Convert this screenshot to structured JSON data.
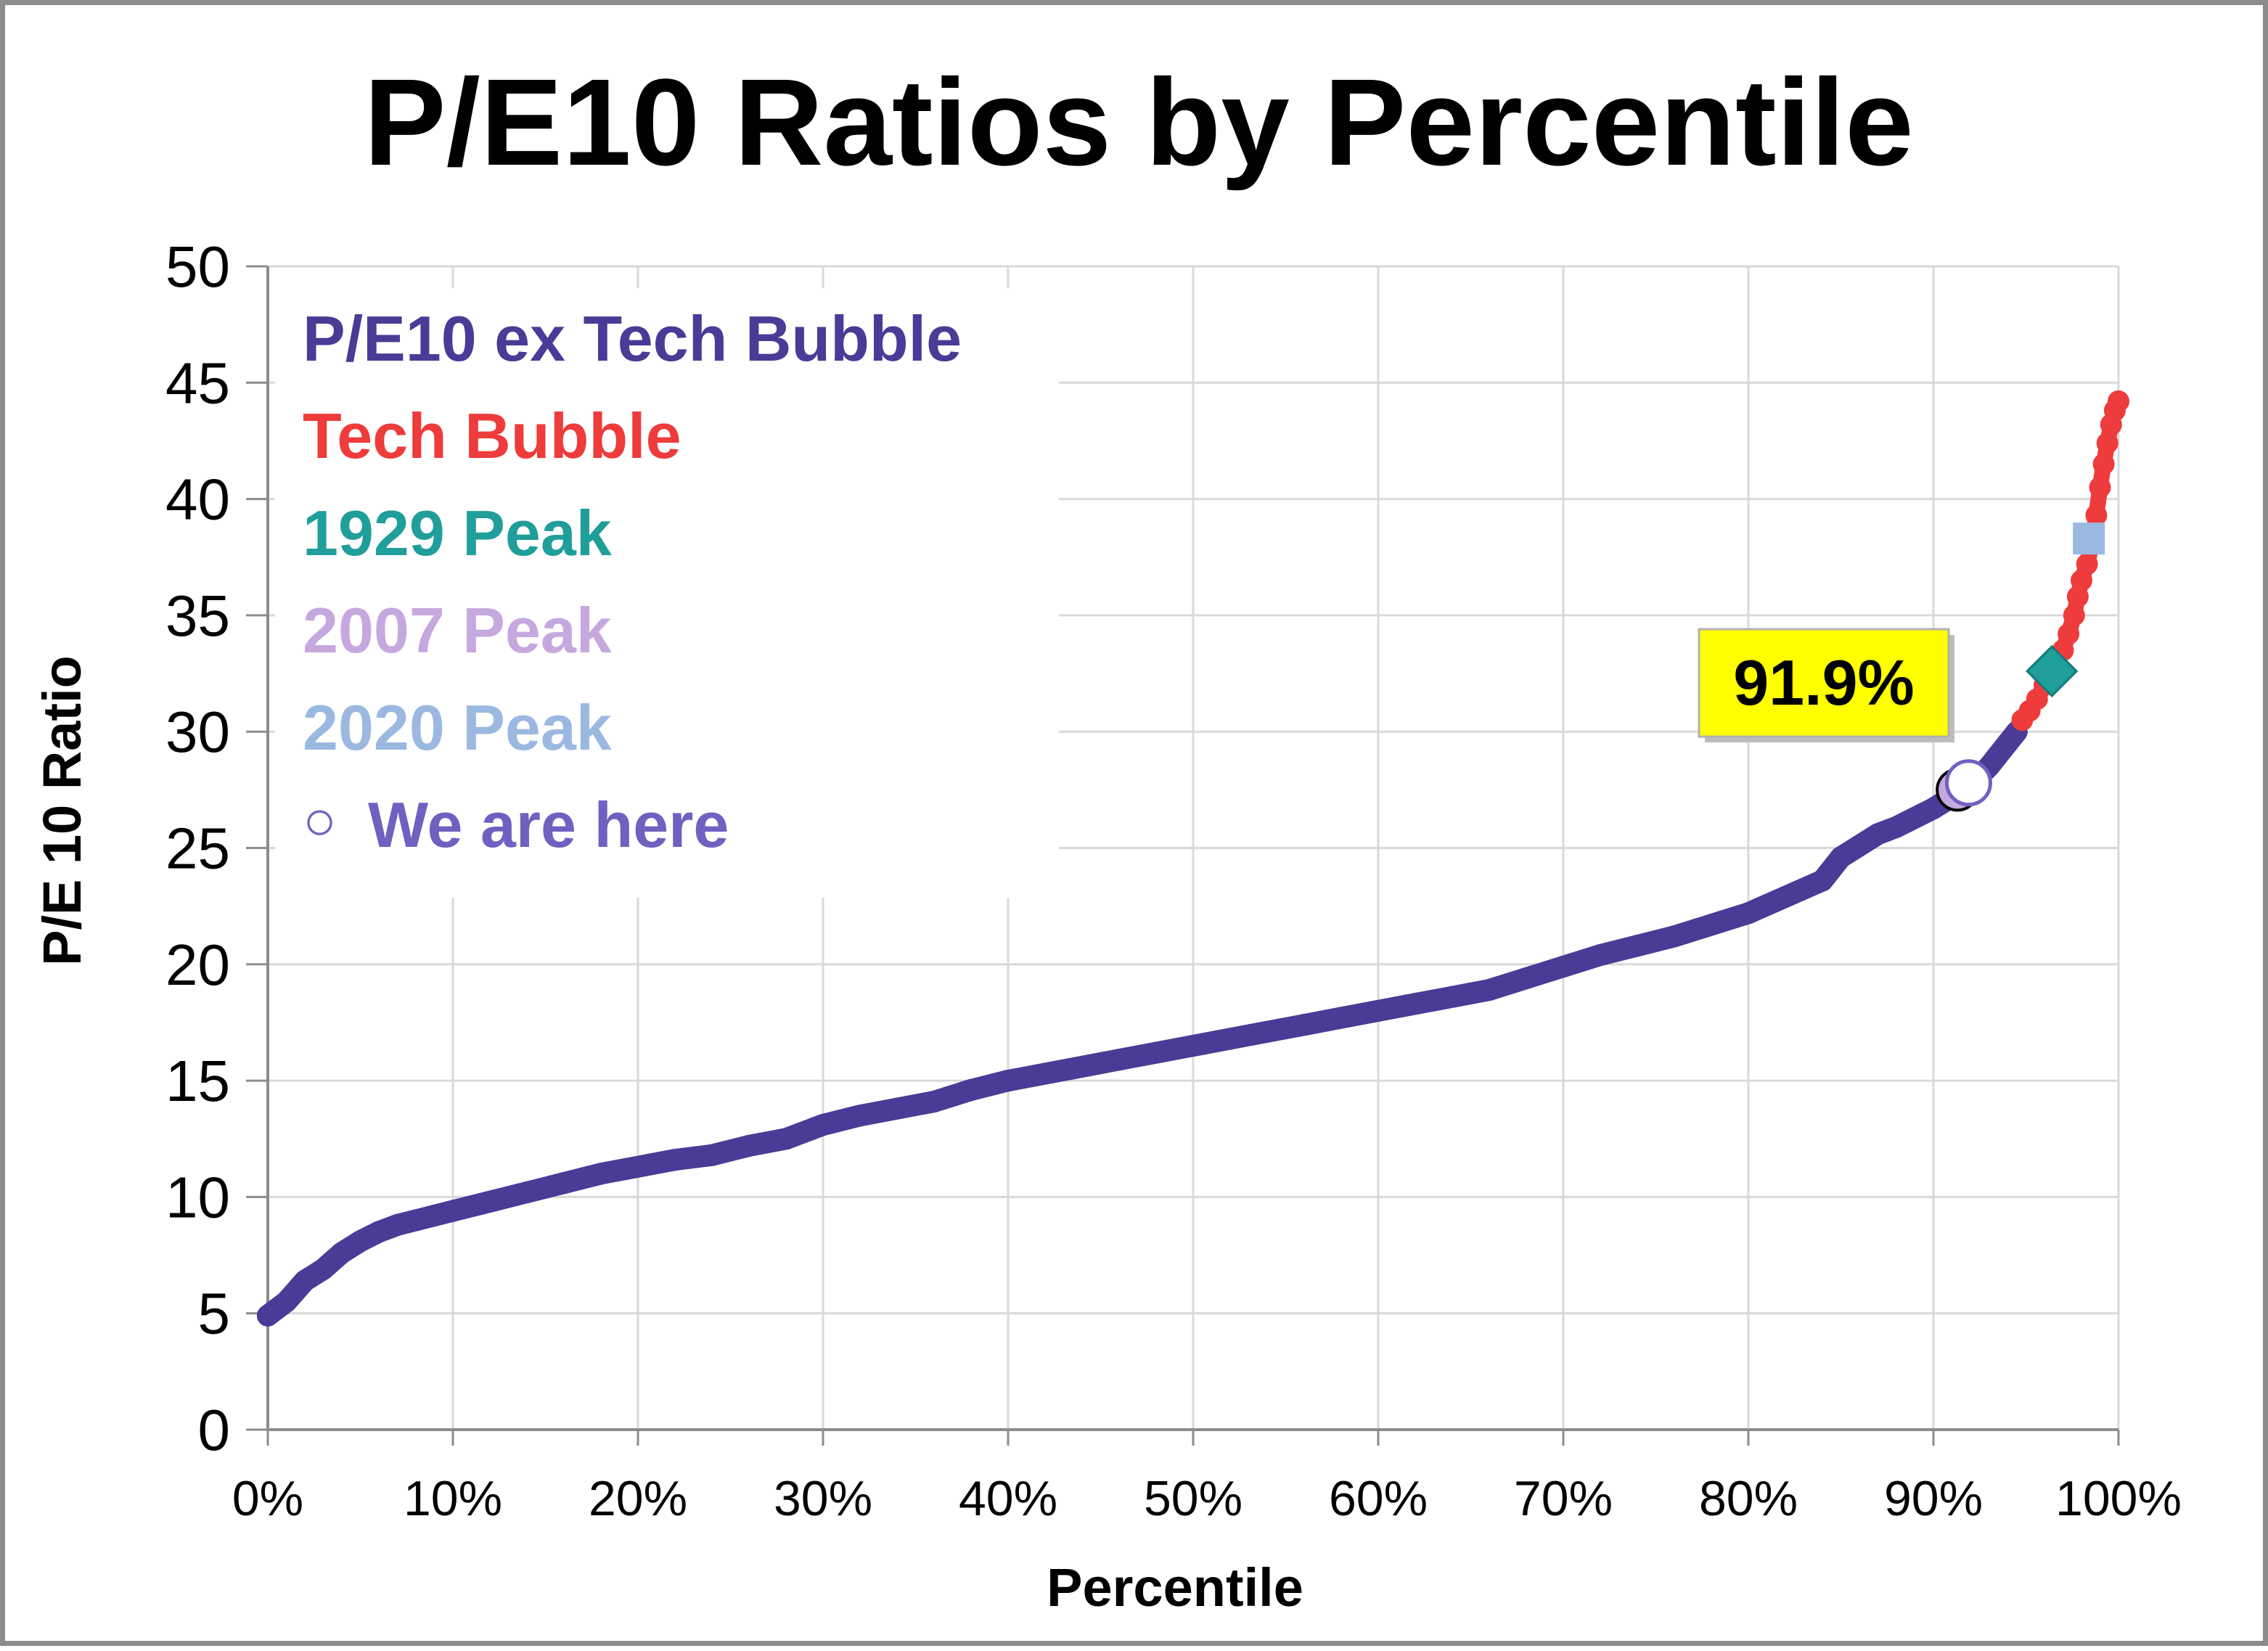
{
  "chart_data": {
    "type": "scatter",
    "title": "P/E10 Ratios by Percentile",
    "xlabel": "Percentile",
    "ylabel": "P/E 10 Ratio",
    "xlim": [
      0,
      100
    ],
    "ylim": [
      0,
      50
    ],
    "x_ticks": [
      "0%",
      "10%",
      "20%",
      "30%",
      "40%",
      "50%",
      "60%",
      "70%",
      "80%",
      "90%",
      "100%"
    ],
    "y_ticks": [
      "0",
      "5",
      "10",
      "15",
      "20",
      "25",
      "30",
      "35",
      "40",
      "45",
      "50"
    ],
    "grid": true,
    "legend_position": "top-left",
    "series": [
      {
        "name": "P/E10 ex Tech Bubble",
        "color": "#4b3a96",
        "points": [
          [
            0,
            4.9
          ],
          [
            1,
            5.5
          ],
          [
            2,
            6.4
          ],
          [
            3,
            6.9
          ],
          [
            4,
            7.6
          ],
          [
            5,
            8.1
          ],
          [
            6,
            8.5
          ],
          [
            7,
            8.8
          ],
          [
            8,
            9.0
          ],
          [
            9,
            9.2
          ],
          [
            10,
            9.4
          ],
          [
            12,
            9.8
          ],
          [
            14,
            10.2
          ],
          [
            16,
            10.6
          ],
          [
            18,
            11.0
          ],
          [
            20,
            11.3
          ],
          [
            22,
            11.6
          ],
          [
            24,
            11.8
          ],
          [
            26,
            12.2
          ],
          [
            28,
            12.5
          ],
          [
            30,
            13.1
          ],
          [
            32,
            13.5
          ],
          [
            34,
            13.8
          ],
          [
            36,
            14.1
          ],
          [
            38,
            14.6
          ],
          [
            40,
            15.0
          ],
          [
            42,
            15.3
          ],
          [
            44,
            15.6
          ],
          [
            46,
            15.9
          ],
          [
            48,
            16.2
          ],
          [
            50,
            16.5
          ],
          [
            52,
            16.8
          ],
          [
            54,
            17.1
          ],
          [
            56,
            17.4
          ],
          [
            58,
            17.7
          ],
          [
            60,
            18.0
          ],
          [
            62,
            18.3
          ],
          [
            64,
            18.6
          ],
          [
            66,
            18.9
          ],
          [
            68,
            19.4
          ],
          [
            70,
            19.9
          ],
          [
            72,
            20.4
          ],
          [
            74,
            20.8
          ],
          [
            76,
            21.2
          ],
          [
            78,
            21.7
          ],
          [
            80,
            22.2
          ],
          [
            82,
            22.9
          ],
          [
            84,
            23.6
          ],
          [
            85,
            24.6
          ],
          [
            86,
            25.1
          ],
          [
            87,
            25.6
          ],
          [
            88,
            25.9
          ],
          [
            89,
            26.3
          ],
          [
            90,
            26.7
          ],
          [
            91,
            27.2
          ],
          [
            92,
            27.7
          ],
          [
            93,
            28.5
          ],
          [
            94,
            29.5
          ],
          [
            94.5,
            30.0
          ]
        ]
      },
      {
        "name": "Tech Bubble",
        "color": "#ee3b3b",
        "points": [
          [
            94.8,
            30.5
          ],
          [
            95.2,
            30.9
          ],
          [
            95.6,
            31.4
          ],
          [
            96.0,
            32.0
          ],
          [
            96.5,
            32.8
          ],
          [
            97.0,
            33.5
          ],
          [
            97.3,
            34.2
          ],
          [
            97.6,
            35.0
          ],
          [
            97.8,
            35.8
          ],
          [
            98.0,
            36.5
          ],
          [
            98.3,
            37.2
          ],
          [
            98.6,
            38.2
          ],
          [
            98.8,
            39.3
          ],
          [
            99.0,
            40.5
          ],
          [
            99.2,
            41.5
          ],
          [
            99.4,
            42.4
          ],
          [
            99.6,
            43.2
          ],
          [
            99.8,
            43.8
          ],
          [
            100,
            44.2
          ]
        ]
      },
      {
        "name": "1929 Peak",
        "color": "#1f9e9a",
        "marker": "diamond",
        "points": [
          [
            96.4,
            32.6
          ]
        ]
      },
      {
        "name": "2007 Peak",
        "color": "#c5a8de",
        "marker": "circle",
        "points": [
          [
            91.3,
            27.5
          ]
        ]
      },
      {
        "name": "2020 Peak",
        "color": "#9bb8e0",
        "marker": "square",
        "points": [
          [
            98.4,
            38.3
          ]
        ]
      },
      {
        "name": "We are here",
        "color": "#7060c0",
        "marker": "open-circle",
        "points": [
          [
            91.9,
            27.8
          ]
        ]
      }
    ],
    "annotation": {
      "text": "91.9%",
      "background": "#ffff00",
      "x": 91.9
    }
  },
  "legend": {
    "items": [
      {
        "label": "P/E10 ex Tech Bubble",
        "color": "#4b3a96"
      },
      {
        "label": "Tech Bubble",
        "color": "#ee3b3b"
      },
      {
        "label": "1929 Peak",
        "color": "#1f9e9a"
      },
      {
        "label": "2007 Peak",
        "color": "#c5a8de"
      },
      {
        "label": "2020 Peak",
        "color": "#9bb8e0"
      },
      {
        "label": "We are here",
        "color": "#7060c0",
        "symbol": "○"
      }
    ]
  }
}
